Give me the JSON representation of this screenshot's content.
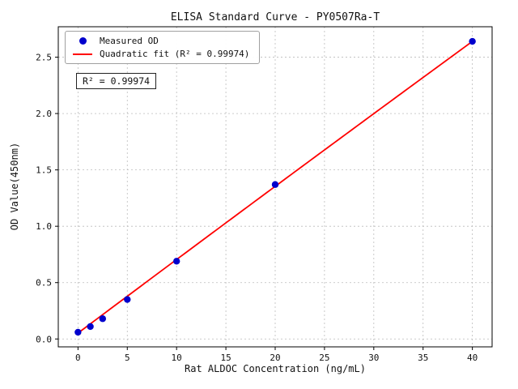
{
  "chart_data": {
    "type": "scatter",
    "title": "ELISA Standard Curve - PY0507Ra-T",
    "xlabel": "Rat ALDOC Concentration (ng/mL)",
    "ylabel": "OD Value(450nm)",
    "xlim": [
      -2,
      42
    ],
    "ylim": [
      -0.07,
      2.77
    ],
    "x_ticks": [
      0,
      5,
      10,
      15,
      20,
      25,
      30,
      35,
      40
    ],
    "y_ticks": [
      0.0,
      0.5,
      1.0,
      1.5,
      2.0,
      2.5
    ],
    "y_tick_labels": [
      "0.0",
      "0.5",
      "1.0",
      "1.5",
      "2.0",
      "2.5"
    ],
    "grid": true,
    "grid_color": "#bbbbbb",
    "legend_position": "upper left",
    "annotation": "R² = 0.99974",
    "r_squared": 0.99974,
    "series": [
      {
        "name": "Measured OD",
        "type": "scatter",
        "color": "#0000cd",
        "x": [
          0,
          1.25,
          2.5,
          5,
          10,
          20,
          40
        ],
        "y": [
          0.06,
          0.11,
          0.18,
          0.35,
          0.69,
          1.37,
          2.64
        ]
      },
      {
        "name": "Quadratic fit (R² = 0.99974)",
        "type": "line",
        "color": "#ff0000",
        "x_range": [
          0,
          40
        ],
        "quadratic_coefficients": {
          "a": -2e-05,
          "b": 0.0655,
          "c": 0.052
        }
      }
    ]
  }
}
